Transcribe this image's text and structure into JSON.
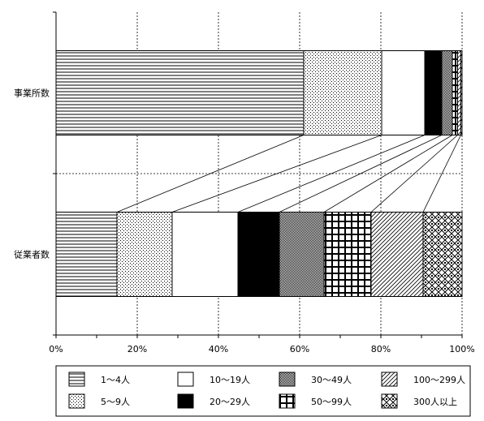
{
  "chart_data": {
    "type": "bar",
    "orientation": "horizontal",
    "stacked": "percent",
    "categories": [
      "事業所数",
      "従業者数"
    ],
    "series": [
      {
        "name": "1～4人",
        "pattern": "hlines",
        "values": [
          61.0,
          15.0
        ]
      },
      {
        "name": "5～9人",
        "pattern": "dots",
        "values": [
          19.2,
          13.6
        ]
      },
      {
        "name": "10～19人",
        "pattern": "white",
        "values": [
          10.6,
          16.2
        ]
      },
      {
        "name": "20～29人",
        "pattern": "black",
        "values": [
          4.2,
          10.2
        ]
      },
      {
        "name": "30～49人",
        "pattern": "checker",
        "values": [
          2.6,
          11.0
        ]
      },
      {
        "name": "50～99人",
        "pattern": "grid",
        "values": [
          1.3,
          11.6
        ]
      },
      {
        "name": "100～299人",
        "pattern": "diagonal",
        "values": [
          0.8,
          12.8
        ]
      },
      {
        "name": "300人以上",
        "pattern": "diamond",
        "values": [
          0.3,
          9.6
        ]
      }
    ],
    "xlim": [
      0,
      100
    ],
    "xticks": [
      "0%",
      "20%",
      "40%",
      "60%",
      "80%",
      "100%"
    ],
    "grid": true,
    "connector_lines": true,
    "legend": {
      "position": "bottom",
      "columns": 4
    }
  }
}
